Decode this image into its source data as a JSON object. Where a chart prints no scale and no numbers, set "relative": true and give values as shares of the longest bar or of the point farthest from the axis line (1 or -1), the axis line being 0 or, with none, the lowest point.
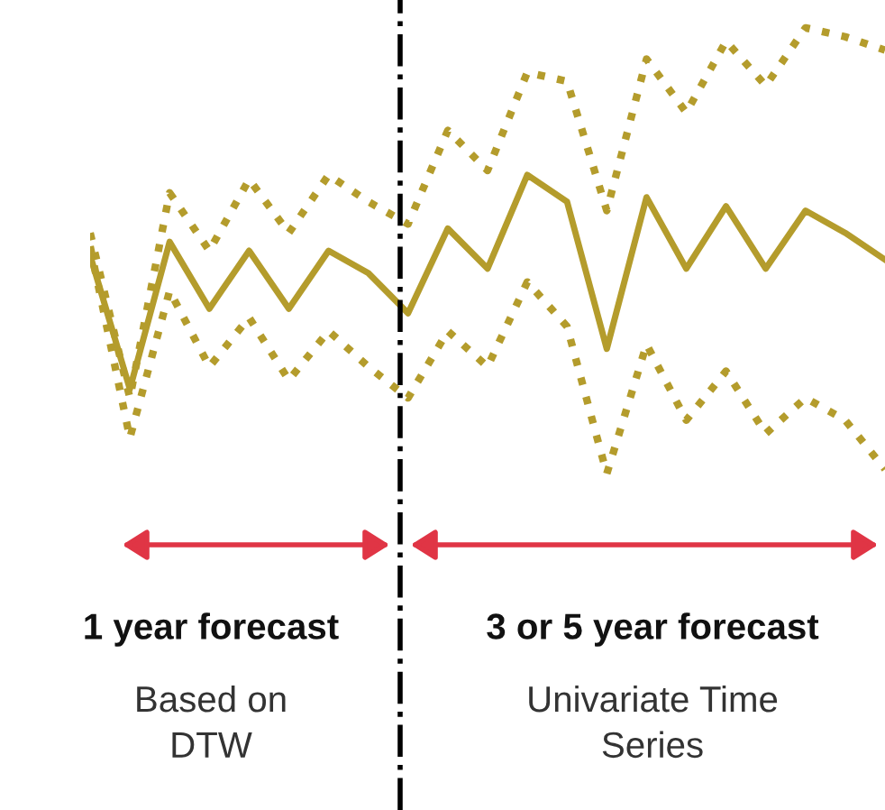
{
  "chart_data": {
    "type": "line",
    "relative": true,
    "categories": [
      null,
      null,
      null,
      null,
      null,
      null,
      null,
      null,
      null,
      null,
      null,
      null,
      null,
      null,
      null,
      null,
      null,
      null,
      null,
      null,
      null
    ],
    "series": [
      {
        "color": "#b49c2c",
        "line_style": "dotted",
        "values": [
          0.54,
          0.17,
          0.63,
          0.5,
          0.66,
          0.54,
          0.67,
          0.61,
          0.56,
          0.77,
          0.68,
          0.9,
          0.88,
          0.59,
          0.93,
          0.81,
          0.97,
          0.87,
          1.0,
          0.98,
          0.95
        ]
      },
      {
        "color": "#b49c2c",
        "line_style": "solid",
        "values": [
          0.49,
          0.19,
          0.52,
          0.37,
          0.5,
          0.37,
          0.5,
          0.45,
          0.36,
          0.55,
          0.46,
          0.67,
          0.61,
          0.28,
          0.62,
          0.46,
          0.6,
          0.46,
          0.59,
          0.54,
          0.48
        ]
      },
      {
        "color": "#b49c2c",
        "line_style": "dotted",
        "values": [
          0.51,
          0.08,
          0.41,
          0.24,
          0.35,
          0.21,
          0.32,
          0.24,
          0.17,
          0.32,
          0.24,
          0.43,
          0.33,
          0.0,
          0.29,
          0.12,
          0.23,
          0.09,
          0.17,
          0.12,
          0.01
        ]
      }
    ],
    "annotations": [
      "1 year forecast",
      "Based on\nDTW",
      "3 or 5 year forecast",
      "Univariate Time\nSeries"
    ]
  }
}
